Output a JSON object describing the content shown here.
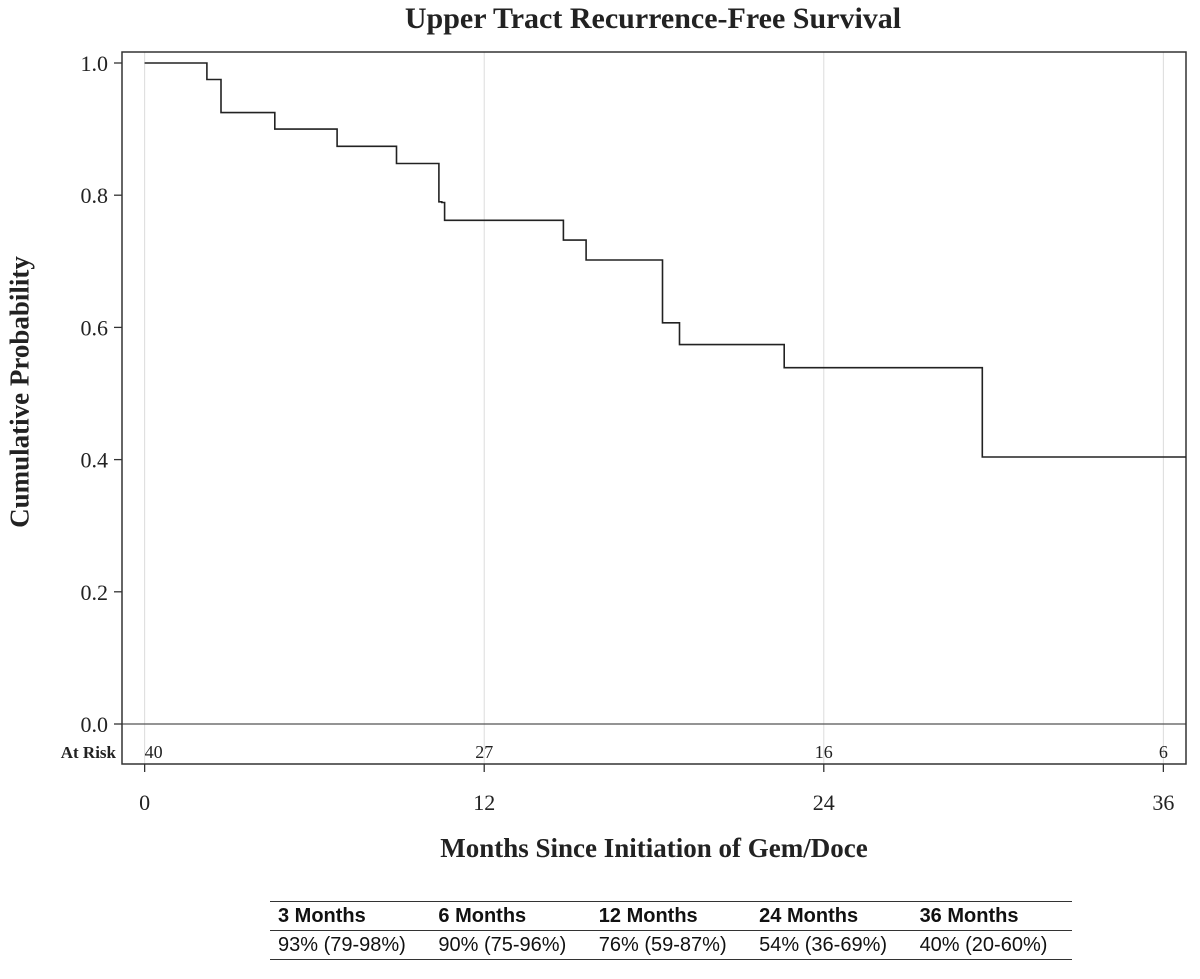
{
  "chart_data": {
    "type": "line",
    "step": true,
    "title": "Upper Tract Recurrence-Free Survival",
    "xlabel": "Months Since Initiation of Gem/Doce",
    "ylabel": "Cumulative Probability",
    "xlim": [
      -0.8,
      36.8
    ],
    "ylim": [
      0,
      1.0
    ],
    "xticks": [
      0,
      12,
      24,
      36
    ],
    "xtick_labels": [
      "0",
      "12",
      "24",
      "36"
    ],
    "yticks": [
      0.0,
      0.2,
      0.4,
      0.6,
      0.8,
      1.0
    ],
    "ytick_labels": [
      "0.0",
      "0.2",
      "0.4",
      "0.6",
      "0.8",
      "1.0"
    ],
    "grid": "vertical",
    "series": [
      {
        "x": [
          0,
          2.2,
          2.7,
          4.6,
          6.8,
          8.9,
          10.4,
          10.5,
          10.6,
          14.8,
          15.6,
          18.3,
          18.9,
          22.6,
          29.6,
          36.8
        ],
        "y": [
          1.0,
          0.975,
          0.925,
          0.9,
          0.874,
          0.848,
          0.79,
          0.789,
          0.762,
          0.732,
          0.702,
          0.607,
          0.574,
          0.539,
          0.404,
          0.404
        ]
      }
    ],
    "at_risk": {
      "label": "At Risk",
      "x": [
        0,
        12,
        24,
        36
      ],
      "values": [
        "40",
        "27",
        "16",
        "6"
      ]
    }
  },
  "summary_table": {
    "headers": [
      "3 Months",
      "6 Months",
      "12 Months",
      "24 Months",
      "36 Months"
    ],
    "values": [
      "93% (79-98%)",
      "90% (75-96%)",
      "76% (59-87%)",
      "54% (36-69%)",
      "40% (20-60%)"
    ]
  }
}
